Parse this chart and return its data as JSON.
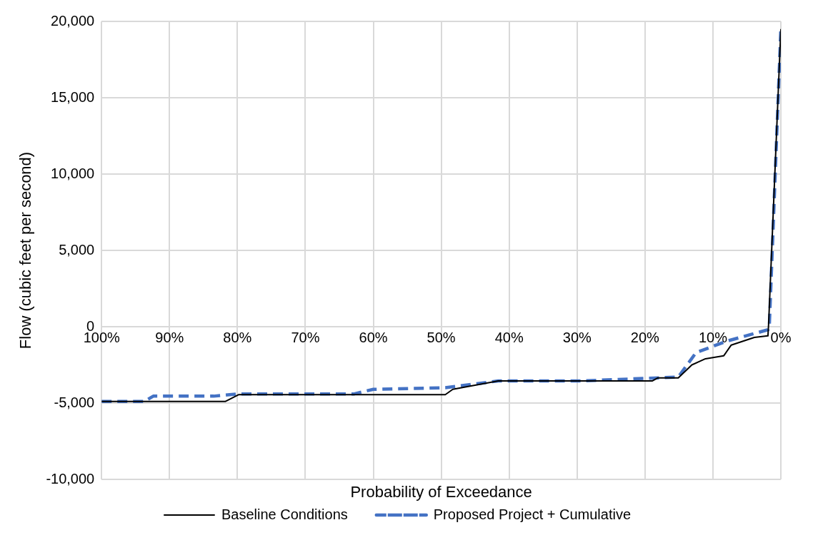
{
  "chart_data": {
    "type": "line",
    "xlabel": "Probability of Exceedance",
    "ylabel": "Flow (cubic feet per second)",
    "xlim": [
      100,
      0
    ],
    "xticks": [
      {
        "value": 100,
        "label": "100%"
      },
      {
        "value": 90,
        "label": "90%"
      },
      {
        "value": 80,
        "label": "80%"
      },
      {
        "value": 70,
        "label": "70%"
      },
      {
        "value": 60,
        "label": "60%"
      },
      {
        "value": 50,
        "label": "50%"
      },
      {
        "value": 40,
        "label": "40%"
      },
      {
        "value": 30,
        "label": "30%"
      },
      {
        "value": 20,
        "label": "20%"
      },
      {
        "value": 10,
        "label": "10%"
      },
      {
        "value": 0,
        "label": "0%"
      }
    ],
    "ylim": [
      -10000,
      20000
    ],
    "yticks": [
      {
        "value": -10000,
        "label": "-10,000"
      },
      {
        "value": -5000,
        "label": "-5,000"
      },
      {
        "value": 0,
        "label": "0"
      },
      {
        "value": 5000,
        "label": "5,000"
      },
      {
        "value": 10000,
        "label": "10,000"
      },
      {
        "value": 15000,
        "label": "15,000"
      },
      {
        "value": 20000,
        "label": "20,000"
      }
    ],
    "grid": true,
    "legend": "bottom",
    "marker": "none",
    "series": [
      {
        "name": "Baseline Conditions",
        "color": "#000000",
        "line_style": "solid",
        "x": [
          100,
          81.8,
          79.8,
          49.4,
          48.3,
          41.6,
          18.9,
          18.1,
          15.1,
          13.1,
          11.1,
          8.4,
          7.3,
          3.9,
          1.9,
          1.8,
          0
        ],
        "values": [
          -4900,
          -4900,
          -4450,
          -4450,
          -4100,
          -3550,
          -3550,
          -3350,
          -3350,
          -2500,
          -2100,
          -1900,
          -1200,
          -700,
          -600,
          200,
          19500
        ]
      },
      {
        "name": "Proposed Project + Cumulative",
        "color": "#4472c4",
        "line_style": "dashed",
        "x": [
          100,
          93.7,
          92.4,
          83.5,
          79.8,
          62.8,
          60,
          49.4,
          41.6,
          29.3,
          15.1,
          12.5,
          8,
          1.9,
          1.7,
          0
        ],
        "values": [
          -4900,
          -4900,
          -4550,
          -4550,
          -4400,
          -4400,
          -4100,
          -4000,
          -3550,
          -3550,
          -3300,
          -1700,
          -950,
          -200,
          0,
          19500
        ]
      }
    ]
  }
}
